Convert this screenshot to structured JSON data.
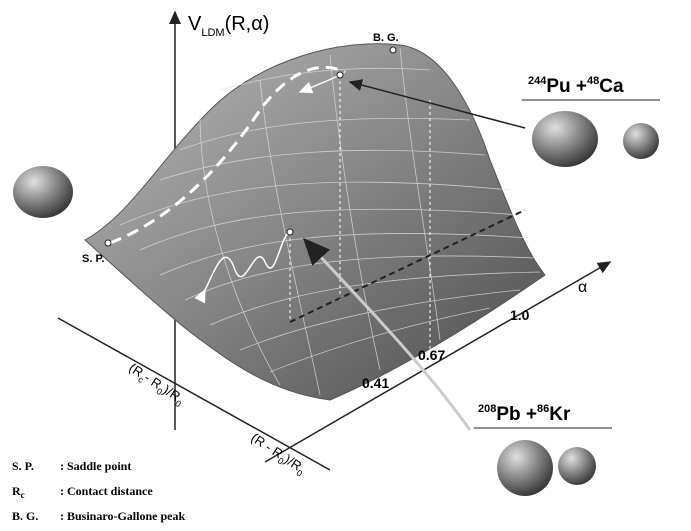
{
  "potential_label": {
    "symbol": "V",
    "subscript": "LDM",
    "args": "(R,α)"
  },
  "points": {
    "bg": "B. G.",
    "sp": "S. P."
  },
  "reactions": [
    {
      "mass1": "244",
      "element1": "Pu",
      "plus": " +",
      "mass2": "48",
      "element2": "Ca"
    },
    {
      "mass1": "208",
      "element1": "Pb",
      "plus": " +",
      "mass2": "86",
      "element2": "Kr"
    }
  ],
  "alpha_axis": {
    "label": "α",
    "ticks": [
      "0.41",
      "0.67",
      "1.0"
    ]
  },
  "rc_axis": [
    "(R",
    "c",
    "- R",
    "0",
    ")/R",
    "0"
  ],
  "r_axis": [
    "(R - R",
    "0",
    ")/R",
    "0"
  ],
  "legend": [
    {
      "term": [
        "S. P."
      ],
      "desc": ": Saddle point"
    },
    {
      "term": [
        "R",
        "c"
      ],
      "desc": ": Contact distance"
    },
    {
      "term": [
        "B. G."
      ],
      "desc": ": Businaro-Gallone peak"
    }
  ]
}
